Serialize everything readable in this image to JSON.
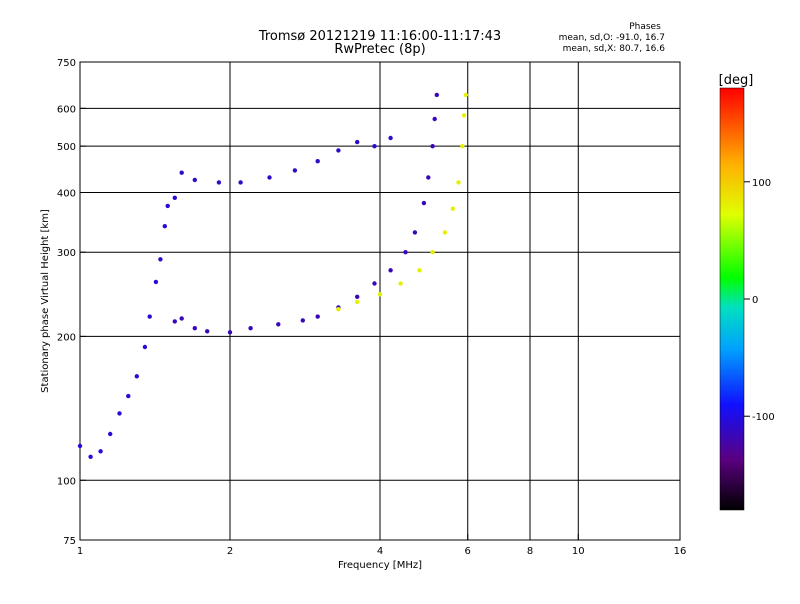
{
  "header": {
    "title": "Tromsø 20121219 11:16:00-11:17:43",
    "subtitle": "RwPretec (8p)",
    "stats_heading": "Phases",
    "stats_o": "mean, sd,O: -91.0, 16.7",
    "stats_x": "mean, sd,X: 80.7, 16.6"
  },
  "chart_data": {
    "type": "scatter",
    "xlabel": "Frequency [MHz]",
    "ylabel": "Stationary phase Virtual Height [km]",
    "xscale": "log",
    "yscale": "log",
    "xlim": [
      1,
      16
    ],
    "ylim": [
      75,
      750
    ],
    "x_ticks": [
      1,
      2,
      4,
      6,
      8,
      10,
      16
    ],
    "x_tick_labels": [
      "1",
      "2",
      "4",
      "6",
      "8",
      "10",
      "16"
    ],
    "y_ticks": [
      75,
      100,
      200,
      300,
      400,
      500,
      600,
      750
    ],
    "y_tick_labels": [
      "75",
      "100",
      "200",
      "300",
      "400",
      "500",
      "600",
      "750"
    ],
    "grid": true,
    "colorbar": {
      "label": "[deg]",
      "range": [
        -180,
        180
      ],
      "ticks": [
        100,
        0,
        -100
      ],
      "tick_labels": [
        "100",
        "0",
        "-100"
      ],
      "colormap": "rainbow"
    },
    "series": [
      {
        "trace": "O-mode low E/F1 trace (~1.1-1.5 MHz)",
        "phase_deg": -105,
        "points": [
          [
            1.0,
            118
          ],
          [
            1.05,
            112
          ],
          [
            1.1,
            115
          ],
          [
            1.15,
            125
          ],
          [
            1.2,
            138
          ],
          [
            1.25,
            150
          ],
          [
            1.3,
            165
          ],
          [
            1.35,
            190
          ],
          [
            1.38,
            220
          ],
          [
            1.42,
            260
          ],
          [
            1.45,
            290
          ],
          [
            1.48,
            340
          ],
          [
            1.5,
            375
          ],
          [
            1.55,
            390
          ]
        ]
      },
      {
        "trace": "O-mode F-layer trace",
        "phase_deg": -115,
        "points": [
          [
            1.55,
            215
          ],
          [
            1.6,
            218
          ],
          [
            1.7,
            208
          ],
          [
            1.8,
            205
          ],
          [
            2.0,
            204
          ],
          [
            2.2,
            208
          ],
          [
            2.5,
            212
          ],
          [
            2.8,
            216
          ],
          [
            3.0,
            220
          ],
          [
            3.3,
            230
          ],
          [
            3.6,
            242
          ],
          [
            3.9,
            258
          ],
          [
            4.2,
            275
          ],
          [
            4.5,
            300
          ],
          [
            4.7,
            330
          ],
          [
            4.9,
            380
          ],
          [
            5.0,
            430
          ],
          [
            5.1,
            500
          ],
          [
            5.15,
            570
          ],
          [
            5.2,
            640
          ]
        ]
      },
      {
        "trace": "X-mode F-layer trace",
        "phase_deg": 80,
        "points": [
          [
            3.3,
            228
          ],
          [
            3.6,
            236
          ],
          [
            4.0,
            245
          ],
          [
            4.4,
            258
          ],
          [
            4.8,
            275
          ],
          [
            5.1,
            300
          ],
          [
            5.4,
            330
          ],
          [
            5.6,
            370
          ],
          [
            5.75,
            420
          ],
          [
            5.85,
            500
          ],
          [
            5.9,
            580
          ],
          [
            5.95,
            640
          ]
        ]
      },
      {
        "trace": "Upper echo trace",
        "phase_deg": -110,
        "points": [
          [
            1.6,
            440
          ],
          [
            1.7,
            425
          ],
          [
            1.9,
            420
          ],
          [
            2.1,
            420
          ],
          [
            2.4,
            430
          ],
          [
            2.7,
            445
          ],
          [
            3.0,
            465
          ],
          [
            3.3,
            490
          ],
          [
            3.6,
            510
          ],
          [
            3.9,
            500
          ],
          [
            4.2,
            520
          ]
        ]
      }
    ]
  }
}
